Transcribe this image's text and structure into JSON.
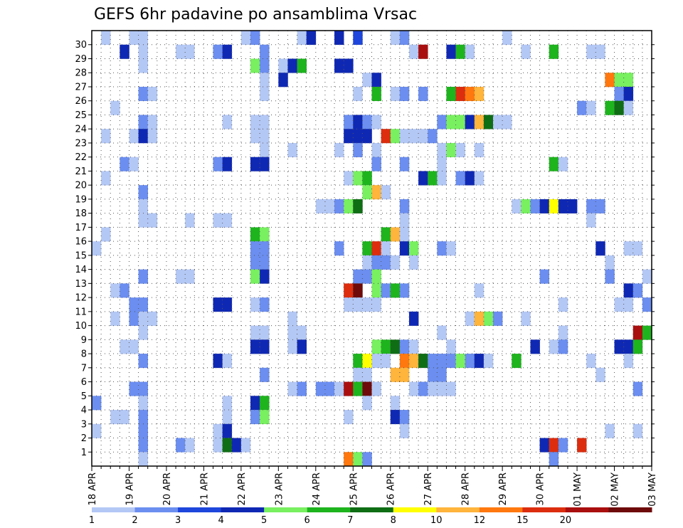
{
  "chart_data": {
    "type": "heatmap",
    "title": "GEFS 6hr padavine po ansamblima Vrsac",
    "xlabel": "",
    "ylabel": "",
    "x_tick_labels": [
      "18 APR",
      "19 APR",
      "20 APR",
      "21 APR",
      "22 APR",
      "23 APR",
      "24 APR",
      "25 APR",
      "26 APR",
      "27 APR",
      "28 APR",
      "29 APR",
      "30 APR",
      "01 MAY",
      "02 MAY",
      "03 MAY"
    ],
    "y_tick_labels": [
      "1",
      "2",
      "3",
      "4",
      "5",
      "6",
      "7",
      "8",
      "9",
      "10",
      "11",
      "12",
      "13",
      "14",
      "15",
      "16",
      "17",
      "18",
      "19",
      "20",
      "21",
      "22",
      "23",
      "24",
      "25",
      "26",
      "27",
      "28",
      "29",
      "30"
    ],
    "y_range": [
      0,
      30
    ],
    "time_steps": 60,
    "steps_per_day": 4,
    "grid": true,
    "colorbar": {
      "position": "bottom",
      "labels": [
        "1",
        "2",
        "3",
        "4",
        "5",
        "6",
        "7",
        "8",
        "10",
        "12",
        "15",
        "20"
      ],
      "colors": [
        "#b4c8f5",
        "#6b8ef0",
        "#1e46dc",
        "#0f28b4",
        "#78f060",
        "#1eb41e",
        "#0f6e14",
        "#ffff00",
        "#ffb43c",
        "#ff780f",
        "#dc2d0f",
        "#aa0f0f",
        "#6e0a0a"
      ]
    },
    "cells": [
      [
        30,
        1,
        0
      ],
      [
        30,
        4,
        0
      ],
      [
        30,
        5,
        0
      ],
      [
        30,
        16,
        0
      ],
      [
        30,
        17,
        1
      ],
      [
        30,
        22,
        0
      ],
      [
        30,
        23,
        3
      ],
      [
        30,
        26,
        3
      ],
      [
        30,
        28,
        2
      ],
      [
        30,
        32,
        0
      ],
      [
        30,
        33,
        1
      ],
      [
        30,
        44,
        0
      ],
      [
        29,
        3,
        3
      ],
      [
        29,
        5,
        0
      ],
      [
        29,
        9,
        0
      ],
      [
        29,
        10,
        0
      ],
      [
        29,
        13,
        1
      ],
      [
        29,
        14,
        3
      ],
      [
        29,
        18,
        1
      ],
      [
        29,
        34,
        0
      ],
      [
        29,
        35,
        11
      ],
      [
        29,
        38,
        3
      ],
      [
        29,
        39,
        5
      ],
      [
        29,
        40,
        0
      ],
      [
        29,
        46,
        0
      ],
      [
        29,
        49,
        5
      ],
      [
        29,
        53,
        0
      ],
      [
        29,
        54,
        0
      ],
      [
        28,
        5,
        0
      ],
      [
        28,
        17,
        4
      ],
      [
        28,
        18,
        1
      ],
      [
        28,
        20,
        0
      ],
      [
        28,
        21,
        3
      ],
      [
        28,
        22,
        5
      ],
      [
        28,
        26,
        3
      ],
      [
        28,
        27,
        3
      ],
      [
        27,
        18,
        0
      ],
      [
        27,
        20,
        3
      ],
      [
        27,
        29,
        0
      ],
      [
        27,
        30,
        3
      ],
      [
        27,
        55,
        9
      ],
      [
        27,
        56,
        4
      ],
      [
        27,
        57,
        4
      ],
      [
        26,
        5,
        1
      ],
      [
        26,
        6,
        0
      ],
      [
        26,
        18,
        0
      ],
      [
        26,
        28,
        0
      ],
      [
        26,
        30,
        5
      ],
      [
        26,
        32,
        0
      ],
      [
        26,
        33,
        1
      ],
      [
        26,
        35,
        1
      ],
      [
        26,
        38,
        5
      ],
      [
        26,
        39,
        10
      ],
      [
        26,
        40,
        9
      ],
      [
        26,
        41,
        8
      ],
      [
        26,
        56,
        1
      ],
      [
        26,
        57,
        3
      ],
      [
        25,
        2,
        0
      ],
      [
        25,
        52,
        1
      ],
      [
        25,
        53,
        0
      ],
      [
        25,
        55,
        5
      ],
      [
        25,
        56,
        6
      ],
      [
        25,
        57,
        0
      ],
      [
        24,
        5,
        1
      ],
      [
        24,
        6,
        0
      ],
      [
        24,
        14,
        0
      ],
      [
        24,
        17,
        0
      ],
      [
        24,
        18,
        0
      ],
      [
        24,
        27,
        1
      ],
      [
        24,
        28,
        3
      ],
      [
        24,
        29,
        1
      ],
      [
        24,
        30,
        0
      ],
      [
        24,
        37,
        1
      ],
      [
        24,
        38,
        4
      ],
      [
        24,
        39,
        4
      ],
      [
        24,
        40,
        3
      ],
      [
        24,
        41,
        8
      ],
      [
        24,
        42,
        6
      ],
      [
        24,
        43,
        0
      ],
      [
        24,
        44,
        0
      ],
      [
        23,
        1,
        0
      ],
      [
        23,
        4,
        0
      ],
      [
        23,
        5,
        3
      ],
      [
        23,
        6,
        0
      ],
      [
        23,
        17,
        0
      ],
      [
        23,
        18,
        0
      ],
      [
        23,
        27,
        3
      ],
      [
        23,
        28,
        3
      ],
      [
        23,
        29,
        3
      ],
      [
        23,
        31,
        10
      ],
      [
        23,
        32,
        4
      ],
      [
        23,
        33,
        0
      ],
      [
        23,
        34,
        0
      ],
      [
        23,
        35,
        0
      ],
      [
        23,
        36,
        1
      ],
      [
        22,
        18,
        0
      ],
      [
        22,
        21,
        0
      ],
      [
        22,
        26,
        0
      ],
      [
        22,
        28,
        1
      ],
      [
        22,
        30,
        0
      ],
      [
        22,
        37,
        0
      ],
      [
        22,
        38,
        4
      ],
      [
        22,
        39,
        0
      ],
      [
        22,
        41,
        0
      ],
      [
        21,
        3,
        1
      ],
      [
        21,
        4,
        0
      ],
      [
        21,
        13,
        1
      ],
      [
        21,
        14,
        3
      ],
      [
        21,
        17,
        3
      ],
      [
        21,
        18,
        3
      ],
      [
        21,
        30,
        1
      ],
      [
        21,
        33,
        1
      ],
      [
        21,
        37,
        0
      ],
      [
        21,
        49,
        5
      ],
      [
        21,
        50,
        0
      ],
      [
        20,
        1,
        0
      ],
      [
        20,
        27,
        0
      ],
      [
        20,
        28,
        4
      ],
      [
        20,
        29,
        5
      ],
      [
        20,
        35,
        3
      ],
      [
        20,
        36,
        5
      ],
      [
        20,
        37,
        0
      ],
      [
        20,
        39,
        1
      ],
      [
        20,
        40,
        3
      ],
      [
        20,
        41,
        0
      ],
      [
        19,
        5,
        1
      ],
      [
        19,
        29,
        4
      ],
      [
        19,
        30,
        8
      ],
      [
        19,
        31,
        0
      ],
      [
        18,
        5,
        0
      ],
      [
        18,
        24,
        0
      ],
      [
        18,
        25,
        0
      ],
      [
        18,
        26,
        1
      ],
      [
        18,
        27,
        4
      ],
      [
        18,
        28,
        6
      ],
      [
        18,
        33,
        1
      ],
      [
        18,
        45,
        0
      ],
      [
        18,
        46,
        4
      ],
      [
        18,
        47,
        1
      ],
      [
        18,
        48,
        3
      ],
      [
        18,
        49,
        7
      ],
      [
        18,
        50,
        3
      ],
      [
        18,
        51,
        3
      ],
      [
        18,
        53,
        1
      ],
      [
        18,
        54,
        1
      ],
      [
        17,
        5,
        0
      ],
      [
        17,
        6,
        0
      ],
      [
        17,
        10,
        0
      ],
      [
        17,
        13,
        0
      ],
      [
        17,
        14,
        0
      ],
      [
        17,
        33,
        0
      ],
      [
        17,
        53,
        0
      ],
      [
        16,
        1,
        0
      ],
      [
        16,
        17,
        5
      ],
      [
        16,
        18,
        4
      ],
      [
        16,
        31,
        5
      ],
      [
        16,
        32,
        8
      ],
      [
        16,
        33,
        0
      ],
      [
        15,
        0,
        0
      ],
      [
        15,
        17,
        1
      ],
      [
        15,
        18,
        1
      ],
      [
        15,
        26,
        1
      ],
      [
        15,
        29,
        5
      ],
      [
        15,
        30,
        10
      ],
      [
        15,
        31,
        0
      ],
      [
        15,
        33,
        3
      ],
      [
        15,
        34,
        4
      ],
      [
        15,
        37,
        1
      ],
      [
        15,
        38,
        0
      ],
      [
        15,
        54,
        3
      ],
      [
        15,
        57,
        0
      ],
      [
        15,
        58,
        0
      ],
      [
        14,
        17,
        1
      ],
      [
        14,
        18,
        1
      ],
      [
        14,
        29,
        0
      ],
      [
        14,
        30,
        1
      ],
      [
        14,
        31,
        1
      ],
      [
        14,
        32,
        0
      ],
      [
        14,
        34,
        0
      ],
      [
        14,
        55,
        0
      ],
      [
        13,
        5,
        1
      ],
      [
        13,
        9,
        0
      ],
      [
        13,
        10,
        0
      ],
      [
        13,
        17,
        4
      ],
      [
        13,
        18,
        3
      ],
      [
        13,
        28,
        1
      ],
      [
        13,
        29,
        1
      ],
      [
        13,
        30,
        4
      ],
      [
        13,
        48,
        1
      ],
      [
        13,
        55,
        1
      ],
      [
        13,
        59,
        0
      ],
      [
        12,
        2,
        0
      ],
      [
        12,
        3,
        1
      ],
      [
        12,
        27,
        10
      ],
      [
        12,
        28,
        12
      ],
      [
        12,
        30,
        4
      ],
      [
        12,
        31,
        1
      ],
      [
        12,
        32,
        5
      ],
      [
        12,
        33,
        1
      ],
      [
        12,
        41,
        0
      ],
      [
        12,
        57,
        3
      ],
      [
        12,
        58,
        1
      ],
      [
        11,
        4,
        1
      ],
      [
        11,
        5,
        1
      ],
      [
        11,
        13,
        3
      ],
      [
        11,
        14,
        3
      ],
      [
        11,
        17,
        0
      ],
      [
        11,
        18,
        1
      ],
      [
        11,
        27,
        0
      ],
      [
        11,
        28,
        0
      ],
      [
        11,
        29,
        0
      ],
      [
        11,
        30,
        0
      ],
      [
        11,
        50,
        0
      ],
      [
        11,
        56,
        0
      ],
      [
        11,
        57,
        0
      ],
      [
        11,
        59,
        1
      ],
      [
        10,
        2,
        0
      ],
      [
        10,
        4,
        1
      ],
      [
        10,
        5,
        0
      ],
      [
        10,
        6,
        0
      ],
      [
        10,
        21,
        0
      ],
      [
        10,
        34,
        3
      ],
      [
        10,
        40,
        0
      ],
      [
        10,
        41,
        8
      ],
      [
        10,
        42,
        4
      ],
      [
        10,
        43,
        1
      ],
      [
        10,
        46,
        0
      ],
      [
        9,
        5,
        0
      ],
      [
        9,
        17,
        0
      ],
      [
        9,
        18,
        0
      ],
      [
        9,
        21,
        0
      ],
      [
        9,
        22,
        0
      ],
      [
        9,
        37,
        0
      ],
      [
        9,
        50,
        0
      ],
      [
        9,
        58,
        11
      ],
      [
        9,
        59,
        5
      ],
      [
        8,
        3,
        0
      ],
      [
        8,
        4,
        0
      ],
      [
        8,
        17,
        3
      ],
      [
        8,
        18,
        3
      ],
      [
        8,
        21,
        0
      ],
      [
        8,
        22,
        3
      ],
      [
        8,
        30,
        4
      ],
      [
        8,
        31,
        5
      ],
      [
        8,
        32,
        6
      ],
      [
        8,
        33,
        1
      ],
      [
        8,
        34,
        0
      ],
      [
        8,
        38,
        0
      ],
      [
        8,
        47,
        3
      ],
      [
        8,
        49,
        0
      ],
      [
        8,
        50,
        1
      ],
      [
        8,
        56,
        3
      ],
      [
        8,
        57,
        3
      ],
      [
        8,
        58,
        5
      ],
      [
        7,
        5,
        1
      ],
      [
        7,
        13,
        3
      ],
      [
        7,
        14,
        0
      ],
      [
        7,
        28,
        5
      ],
      [
        7,
        29,
        7
      ],
      [
        7,
        30,
        0
      ],
      [
        7,
        31,
        0
      ],
      [
        7,
        33,
        9
      ],
      [
        7,
        34,
        8
      ],
      [
        7,
        35,
        6
      ],
      [
        7,
        36,
        1
      ],
      [
        7,
        37,
        1
      ],
      [
        7,
        38,
        1
      ],
      [
        7,
        39,
        4
      ],
      [
        7,
        40,
        1
      ],
      [
        7,
        41,
        3
      ],
      [
        7,
        42,
        0
      ],
      [
        7,
        45,
        5
      ],
      [
        7,
        53,
        0
      ],
      [
        7,
        57,
        0
      ],
      [
        6,
        18,
        1
      ],
      [
        6,
        28,
        0
      ],
      [
        6,
        29,
        0
      ],
      [
        6,
        32,
        8
      ],
      [
        6,
        33,
        8
      ],
      [
        6,
        36,
        1
      ],
      [
        6,
        37,
        1
      ],
      [
        6,
        54,
        0
      ],
      [
        5,
        4,
        1
      ],
      [
        5,
        5,
        1
      ],
      [
        5,
        21,
        0
      ],
      [
        5,
        22,
        1
      ],
      [
        5,
        24,
        1
      ],
      [
        5,
        25,
        1
      ],
      [
        5,
        26,
        0
      ],
      [
        5,
        27,
        11
      ],
      [
        5,
        28,
        5
      ],
      [
        5,
        29,
        12
      ],
      [
        5,
        30,
        0
      ],
      [
        5,
        34,
        0
      ],
      [
        5,
        35,
        1
      ],
      [
        5,
        36,
        0
      ],
      [
        5,
        37,
        0
      ],
      [
        5,
        38,
        0
      ],
      [
        5,
        58,
        1
      ],
      [
        4,
        0,
        1
      ],
      [
        4,
        5,
        0
      ],
      [
        4,
        14,
        0
      ],
      [
        4,
        17,
        3
      ],
      [
        4,
        18,
        5
      ],
      [
        4,
        29,
        0
      ],
      [
        4,
        32,
        0
      ],
      [
        3,
        2,
        0
      ],
      [
        3,
        3,
        0
      ],
      [
        3,
        5,
        1
      ],
      [
        3,
        14,
        0
      ],
      [
        3,
        17,
        1
      ],
      [
        3,
        18,
        4
      ],
      [
        3,
        27,
        0
      ],
      [
        3,
        32,
        3
      ],
      [
        3,
        33,
        1
      ],
      [
        2,
        0,
        0
      ],
      [
        2,
        5,
        1
      ],
      [
        2,
        13,
        0
      ],
      [
        2,
        14,
        3
      ],
      [
        2,
        33,
        0
      ],
      [
        2,
        55,
        0
      ],
      [
        2,
        58,
        0
      ],
      [
        1,
        5,
        1
      ],
      [
        1,
        9,
        1
      ],
      [
        1,
        10,
        0
      ],
      [
        1,
        13,
        0
      ],
      [
        1,
        14,
        6
      ],
      [
        1,
        15,
        3
      ],
      [
        1,
        16,
        0
      ],
      [
        1,
        48,
        3
      ],
      [
        1,
        49,
        10
      ],
      [
        1,
        50,
        1
      ],
      [
        1,
        52,
        10
      ],
      [
        0,
        5,
        0
      ],
      [
        0,
        27,
        9
      ],
      [
        0,
        28,
        4
      ],
      [
        0,
        29,
        1
      ],
      [
        0,
        49,
        1
      ]
    ]
  }
}
